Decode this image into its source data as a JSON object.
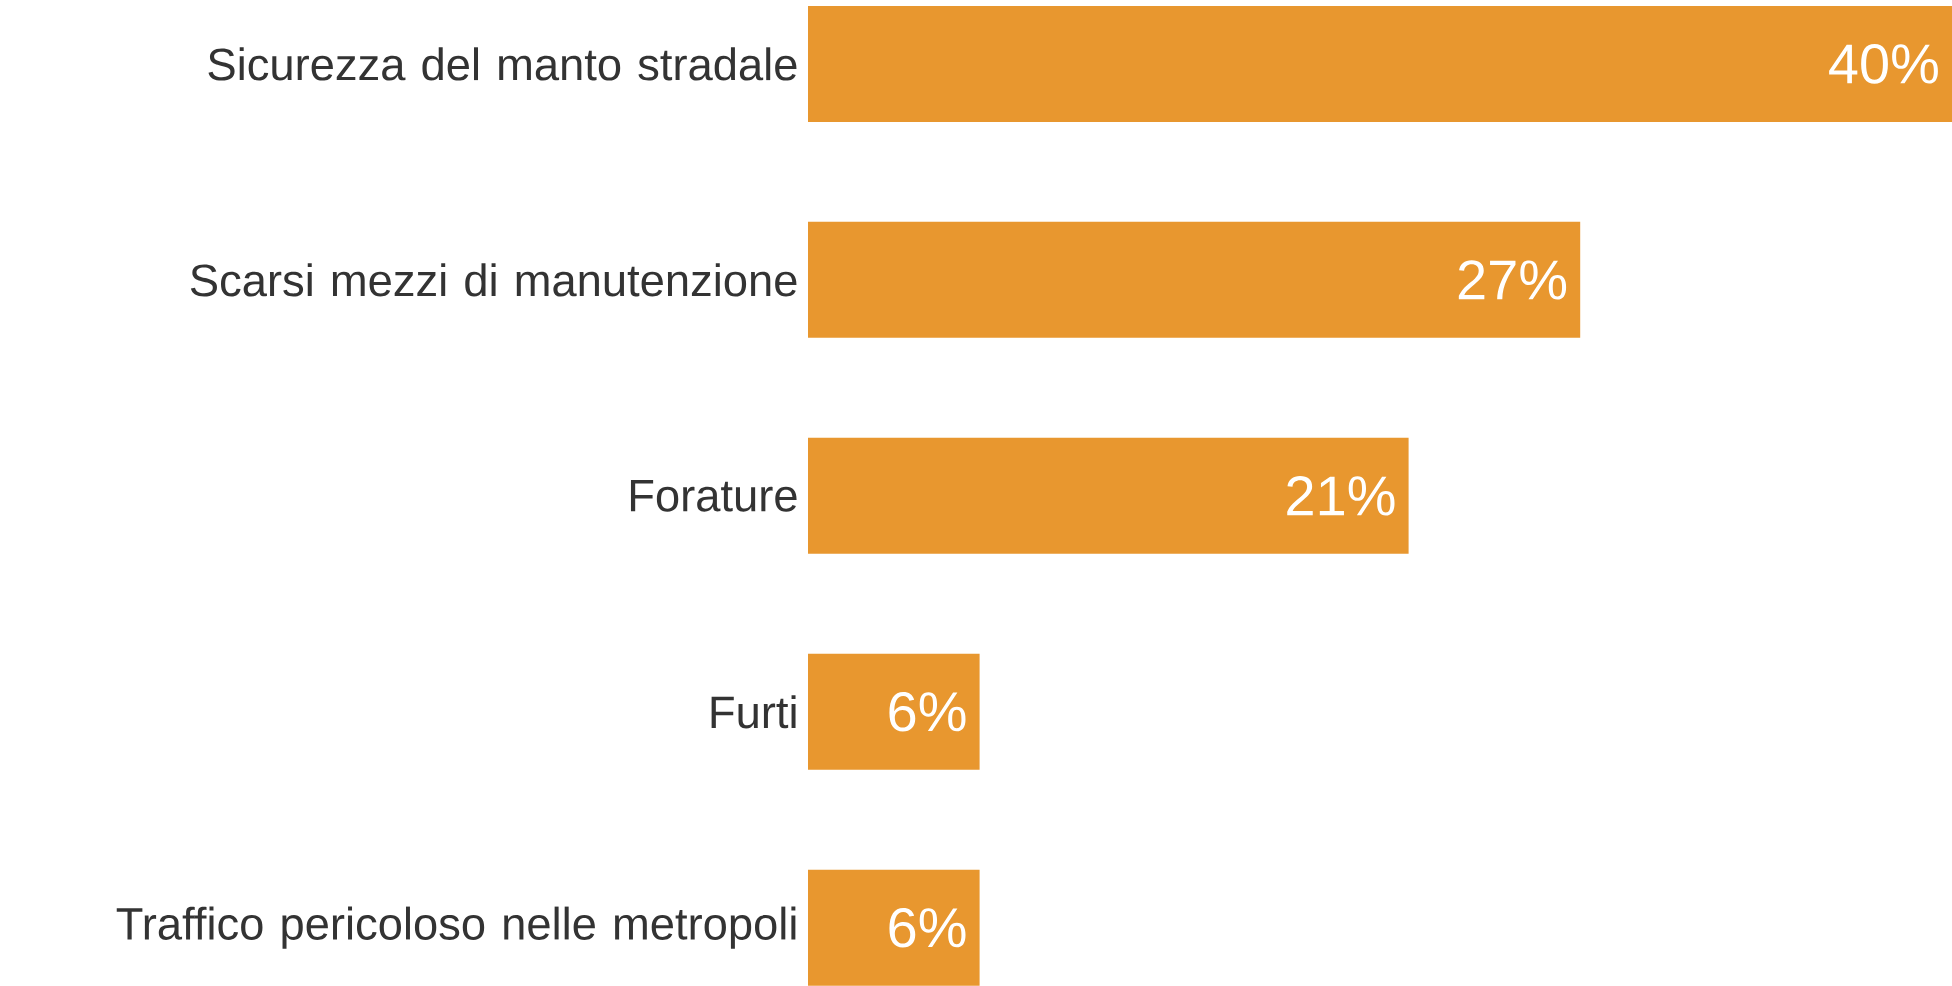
{
  "chart_data": {
    "type": "bar",
    "orientation": "horizontal",
    "categories": [
      "Sicurezza del manto stradale",
      "Scarsi mezzi di manutenzione",
      "Forature",
      "Furti",
      "Traffico pericoloso nelle metropoli"
    ],
    "values": [
      40,
      27,
      21,
      6,
      6
    ],
    "color": "#e8972f",
    "value_labels": [
      "40%",
      "27%",
      "21%",
      "6%",
      "6%"
    ]
  }
}
